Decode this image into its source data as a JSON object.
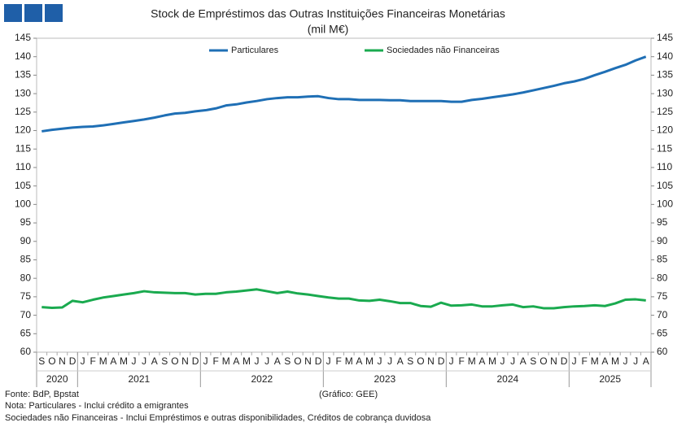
{
  "chart_data": {
    "type": "line",
    "title": "Stock de Empréstimos  das Outras Instituições  Financeiras Monetárias",
    "subtitle": "(mil M€)",
    "categories": [
      "S",
      "O",
      "N",
      "D",
      "J",
      "F",
      "M",
      "A",
      "M",
      "J",
      "J",
      "A",
      "S",
      "O",
      "N",
      "D",
      "J",
      "F",
      "M",
      "A",
      "M",
      "J",
      "J",
      "A",
      "S",
      "O",
      "N",
      "D",
      "J",
      "F",
      "M",
      "A",
      "M",
      "J",
      "J",
      "A",
      "S",
      "O",
      "N",
      "D",
      "J",
      "F",
      "M",
      "A",
      "M",
      "J",
      "J",
      "A",
      "S",
      "O",
      "N",
      "D",
      "J",
      "F",
      "M",
      "A",
      "M",
      "J",
      "J",
      "A"
    ],
    "years": [
      "2020",
      "2021",
      "2022",
      "2023",
      "2024",
      "2025"
    ],
    "series": [
      {
        "name": "Particulares",
        "color": "#1f6fb5",
        "values": [
          119.8,
          120.2,
          120.5,
          120.8,
          121.0,
          121.1,
          121.4,
          121.8,
          122.2,
          122.6,
          123.0,
          123.5,
          124.1,
          124.6,
          124.8,
          125.2,
          125.5,
          126.0,
          126.8,
          127.1,
          127.6,
          128.0,
          128.5,
          128.8,
          129.0,
          129.0,
          129.2,
          129.3,
          128.8,
          128.5,
          128.5,
          128.3,
          128.3,
          128.3,
          128.2,
          128.2,
          128.0,
          128.0,
          128.0,
          128.0,
          127.8,
          127.8,
          128.3,
          128.6,
          129.0,
          129.4,
          129.8,
          130.3,
          130.9,
          131.5,
          132.1,
          132.8,
          133.3,
          134.0,
          135.0,
          135.9,
          136.9,
          137.8,
          139.0,
          140.0
        ]
      },
      {
        "name": "Sociedades não Financeiras",
        "color": "#1aaa4f",
        "values": [
          72.2,
          72.0,
          72.1,
          73.9,
          73.5,
          74.2,
          74.8,
          75.2,
          75.6,
          76.0,
          76.5,
          76.2,
          76.1,
          76.0,
          76.0,
          75.6,
          75.8,
          75.8,
          76.2,
          76.4,
          76.7,
          77.0,
          76.5,
          76.0,
          76.4,
          75.9,
          75.6,
          75.2,
          74.8,
          74.5,
          74.5,
          74.0,
          73.9,
          74.2,
          73.8,
          73.3,
          73.3,
          72.5,
          72.3,
          73.4,
          72.6,
          72.7,
          72.9,
          72.4,
          72.4,
          72.7,
          72.9,
          72.2,
          72.4,
          71.9,
          71.9,
          72.2,
          72.4,
          72.5,
          72.7,
          72.5,
          73.2,
          74.2,
          74.3,
          74.0
        ]
      }
    ],
    "ylim": [
      60,
      145
    ],
    "yticks": [
      60,
      65,
      70,
      75,
      80,
      85,
      90,
      95,
      100,
      105,
      110,
      115,
      120,
      125,
      130,
      135,
      140,
      145
    ],
    "y2lim": [
      60,
      145
    ],
    "y2ticks": [
      60,
      65,
      70,
      75,
      80,
      85,
      90,
      95,
      100,
      105,
      110,
      115,
      120,
      125,
      130,
      135,
      140,
      145
    ],
    "legend": "top",
    "source": "(Gráfico: GEE)",
    "notes": [
      "Fonte: BdP, Bpstat",
      "Nota: Particulares - Inclui crédito a emigrantes",
      "Sociedades não Financeiras - Inclui Empréstimos  e outras disponibilidades,  Créditos de cobrança duvidosa"
    ]
  }
}
